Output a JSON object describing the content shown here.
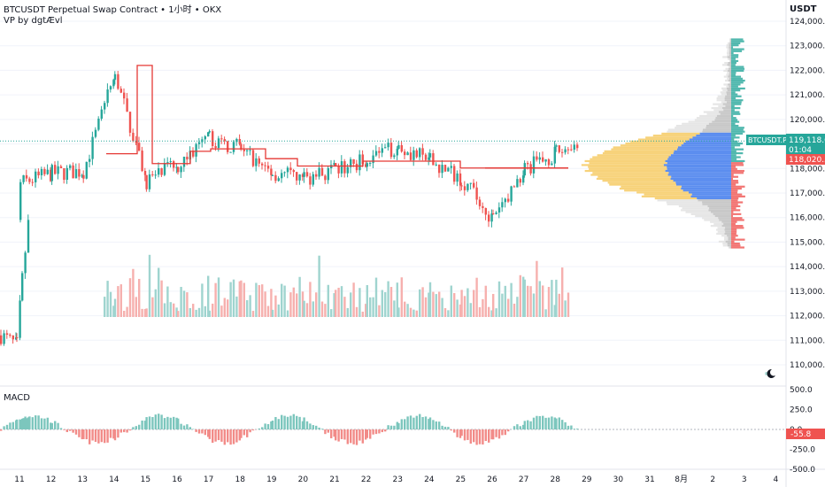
{
  "header": {
    "title": "BTCUSDT Perpetual Swap Contract • 1小时 • OKX",
    "indicator_vp": "VP by dgtÆvl",
    "indicator_macd": "MACD"
  },
  "price_axis": {
    "currency": "USDT",
    "ticks": [
      "124,000.0",
      "123,000.0",
      "122,000.0",
      "121,000.0",
      "120,000.0",
      "119,000.0",
      "118,000.0",
      "117,000.0",
      "116,000.0",
      "115,000.0",
      "114,000.0",
      "113,000.0",
      "112,000.0",
      "111,000.0",
      "110,000.0"
    ],
    "current_symbol": "BTCUSDT.P",
    "current_price": "119,118.6",
    "countdown": "01:04",
    "poc_price": "118,020.5",
    "colors": {
      "up": "#26a69a",
      "down": "#ef5350",
      "poc": "#e53935",
      "vp_value_up": "#5b8def",
      "vp_value_down": "#f7d27a"
    }
  },
  "macd_axis": {
    "ticks": [
      "500.0",
      "250.0",
      "0.0",
      "-250.0",
      "-500.0"
    ],
    "current": "-55.8"
  },
  "time_axis": {
    "ticks": [
      "11",
      "12",
      "13",
      "14",
      "15",
      "16",
      "17",
      "18",
      "19",
      "20",
      "21",
      "22",
      "23",
      "24",
      "25",
      "26",
      "27",
      "28",
      "29",
      "30",
      "31",
      "8月",
      "2",
      "3",
      "4"
    ]
  },
  "chart_data": {
    "type": "candlestick",
    "title": "BTCUSDT Perpetual Swap Contract • 1小时 • OKX",
    "y_range": [
      109500,
      124600
    ],
    "closes_by_day": [
      {
        "day": "11",
        "close": 117400
      },
      {
        "day": "12",
        "close": 117800
      },
      {
        "day": "13",
        "close": 117900
      },
      {
        "day": "14",
        "close": 121800
      },
      {
        "day": "15",
        "close": 117500
      },
      {
        "day": "16",
        "close": 118200
      },
      {
        "day": "17",
        "close": 119200
      },
      {
        "day": "18",
        "close": 118800
      },
      {
        "day": "19",
        "close": 117800
      },
      {
        "day": "20",
        "close": 117600
      },
      {
        "day": "21",
        "close": 117900
      },
      {
        "day": "22",
        "close": 118400
      },
      {
        "day": "23",
        "close": 118900
      },
      {
        "day": "24",
        "close": 118300
      },
      {
        "day": "25",
        "close": 117600
      },
      {
        "day": "26",
        "close": 115900
      },
      {
        "day": "27",
        "close": 118000
      },
      {
        "day": "28",
        "close": 118600
      },
      {
        "day": "28.7",
        "close": 119118.6
      }
    ],
    "poc": 118020.5,
    "last_price": 119118.6,
    "macd_last": -55.8
  }
}
